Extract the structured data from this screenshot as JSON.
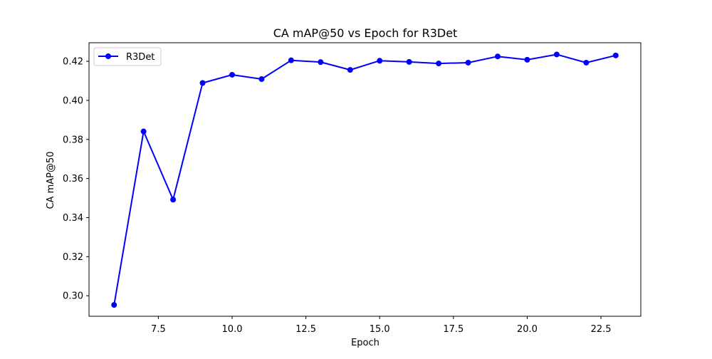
{
  "chart_data": {
    "type": "line",
    "title": "CA mAP@50 vs Epoch for R3Det",
    "xlabel": "Epoch",
    "ylabel": "CA mAP@50",
    "xlim": [
      5.15,
      23.85
    ],
    "ylim": [
      0.2895,
      0.4295
    ],
    "x_ticks": [
      7.5,
      10.0,
      12.5,
      15.0,
      17.5,
      20.0,
      22.5
    ],
    "x_tick_labels": [
      "7.5",
      "10.0",
      "12.5",
      "15.0",
      "17.5",
      "20.0",
      "22.5"
    ],
    "y_ticks": [
      0.3,
      0.32,
      0.34,
      0.36,
      0.38,
      0.4,
      0.42
    ],
    "y_tick_labels": [
      "0.30",
      "0.32",
      "0.34",
      "0.36",
      "0.38",
      "0.40",
      "0.42"
    ],
    "grid": false,
    "legend_position": "top-left",
    "x": [
      6,
      7,
      8,
      9,
      10,
      11,
      12,
      13,
      14,
      15,
      16,
      17,
      18,
      19,
      20,
      21,
      22,
      23
    ],
    "series": [
      {
        "name": "R3Det",
        "color": "#0000ff",
        "marker": "circle",
        "values": [
          0.2953,
          0.3841,
          0.3492,
          0.4089,
          0.4131,
          0.4109,
          0.4205,
          0.4196,
          0.4156,
          0.4203,
          0.4197,
          0.4189,
          0.4193,
          0.4225,
          0.4208,
          0.4235,
          0.4193,
          0.423
        ]
      }
    ]
  }
}
